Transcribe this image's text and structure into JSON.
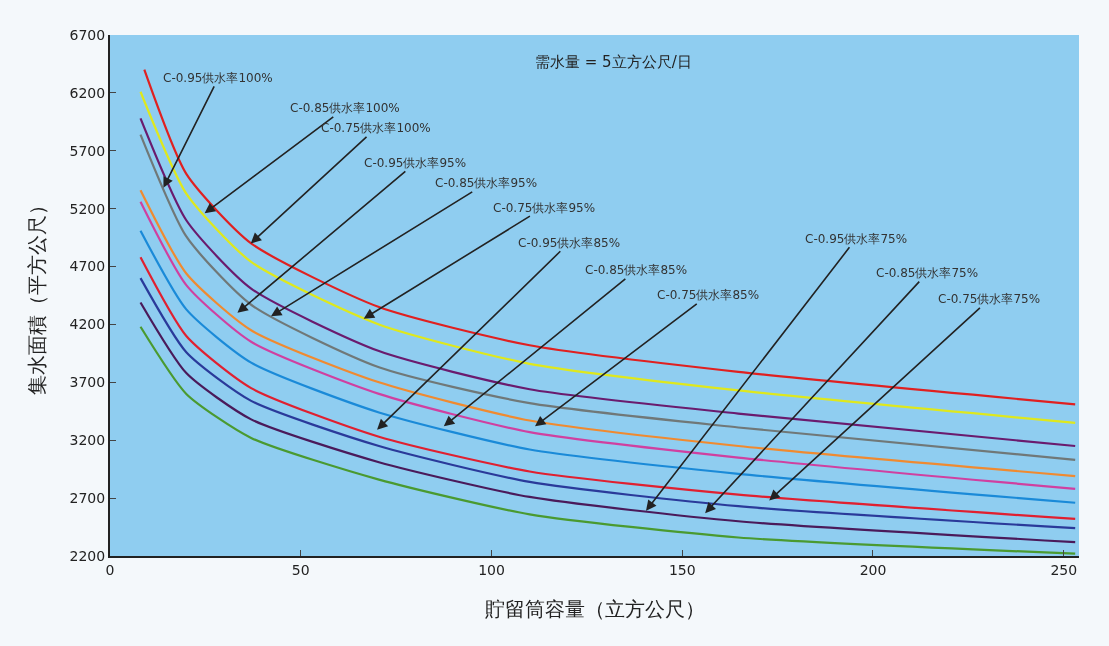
{
  "chart_data": {
    "type": "line",
    "xlabel": "貯留筒容量（立方公尺）",
    "ylabel": "集水面積（平方公尺）",
    "xlim": [
      0,
      254
    ],
    "xticks": [
      0,
      50,
      100,
      150,
      200,
      250
    ],
    "ylim": [
      2200,
      6700
    ],
    "yticks": [
      2200,
      2700,
      3200,
      3700,
      4200,
      4700,
      5200,
      5700,
      6200,
      6700
    ],
    "grid": false,
    "x": [
      8,
      20,
      37,
      70.5,
      110,
      164.7,
      253
    ],
    "series": [
      {
        "color": "#e02020",
        "x": [
          9,
          20,
          37,
          70.5,
          110,
          164.7,
          253
        ],
        "values": [
          6400,
          5500,
          4900,
          4350,
          4020,
          3790,
          3510
        ]
      },
      {
        "color": "#dfe81c",
        "values": [
          6210,
          5330,
          4740,
          4200,
          3860,
          3630,
          3350
        ]
      },
      {
        "color": "#6a1b6e",
        "values": [
          5980,
          5100,
          4510,
          3970,
          3640,
          3430,
          3150
        ]
      },
      {
        "color": "#707878",
        "values": [
          5840,
          4960,
          4370,
          3830,
          3520,
          3310,
          3030
        ]
      },
      {
        "color": "#f08a30",
        "values": [
          5360,
          4640,
          4150,
          3700,
          3370,
          3150,
          2890
        ]
      },
      {
        "color": "#d040a0",
        "values": [
          5260,
          4540,
          4050,
          3600,
          3270,
          3050,
          2780
        ]
      },
      {
        "color": "#1a8ad8",
        "values": [
          5010,
          4330,
          3870,
          3440,
          3120,
          2910,
          2660
        ]
      },
      {
        "color": "#e02030",
        "values": [
          4780,
          4100,
          3650,
          3230,
          2930,
          2730,
          2520
        ]
      },
      {
        "color": "#2a3a9a",
        "values": [
          4600,
          3960,
          3540,
          3150,
          2840,
          2630,
          2440
        ]
      },
      {
        "color": "#4a1a5a",
        "values": [
          4390,
          3780,
          3380,
          3010,
          2710,
          2500,
          2320
        ]
      },
      {
        "color": "#4a9a30",
        "values": [
          4180,
          3600,
          3220,
          2860,
          2560,
          2360,
          2220
        ]
      }
    ],
    "annotations": [
      "需水量 = 5立方公尺/日",
      {
        "text": "C-0.95供水率100%",
        "x": 14,
        "y": 5380
      },
      {
        "text": "C-0.85供水率100%",
        "x": 24.8,
        "y": 5160
      },
      {
        "text": "C-0.75供水率100%",
        "x": 36.9,
        "y": 4900
      },
      {
        "text": "C-0.95供水率95%",
        "x": 33.4,
        "y": 4300
      },
      {
        "text": "C-0.85供水率95%",
        "x": 42.2,
        "y": 4270
      },
      {
        "text": "C-0.75供水率95%",
        "x": 66.5,
        "y": 4250
      },
      {
        "text": "C-0.95供水率85%",
        "x": 70,
        "y": 3290
      },
      {
        "text": "C-0.85供水率85%",
        "x": 87.5,
        "y": 3320
      },
      {
        "text": "C-0.75供水率85%",
        "x": 111.4,
        "y": 3320
      },
      {
        "text": "C-0.95供水率75%",
        "x": 140.5,
        "y": 2590
      },
      {
        "text": "C-0.85供水率75%",
        "x": 156,
        "y": 2570
      },
      {
        "text": "C-0.75供水率75%",
        "x": 172.8,
        "y": 2680
      }
    ]
  }
}
